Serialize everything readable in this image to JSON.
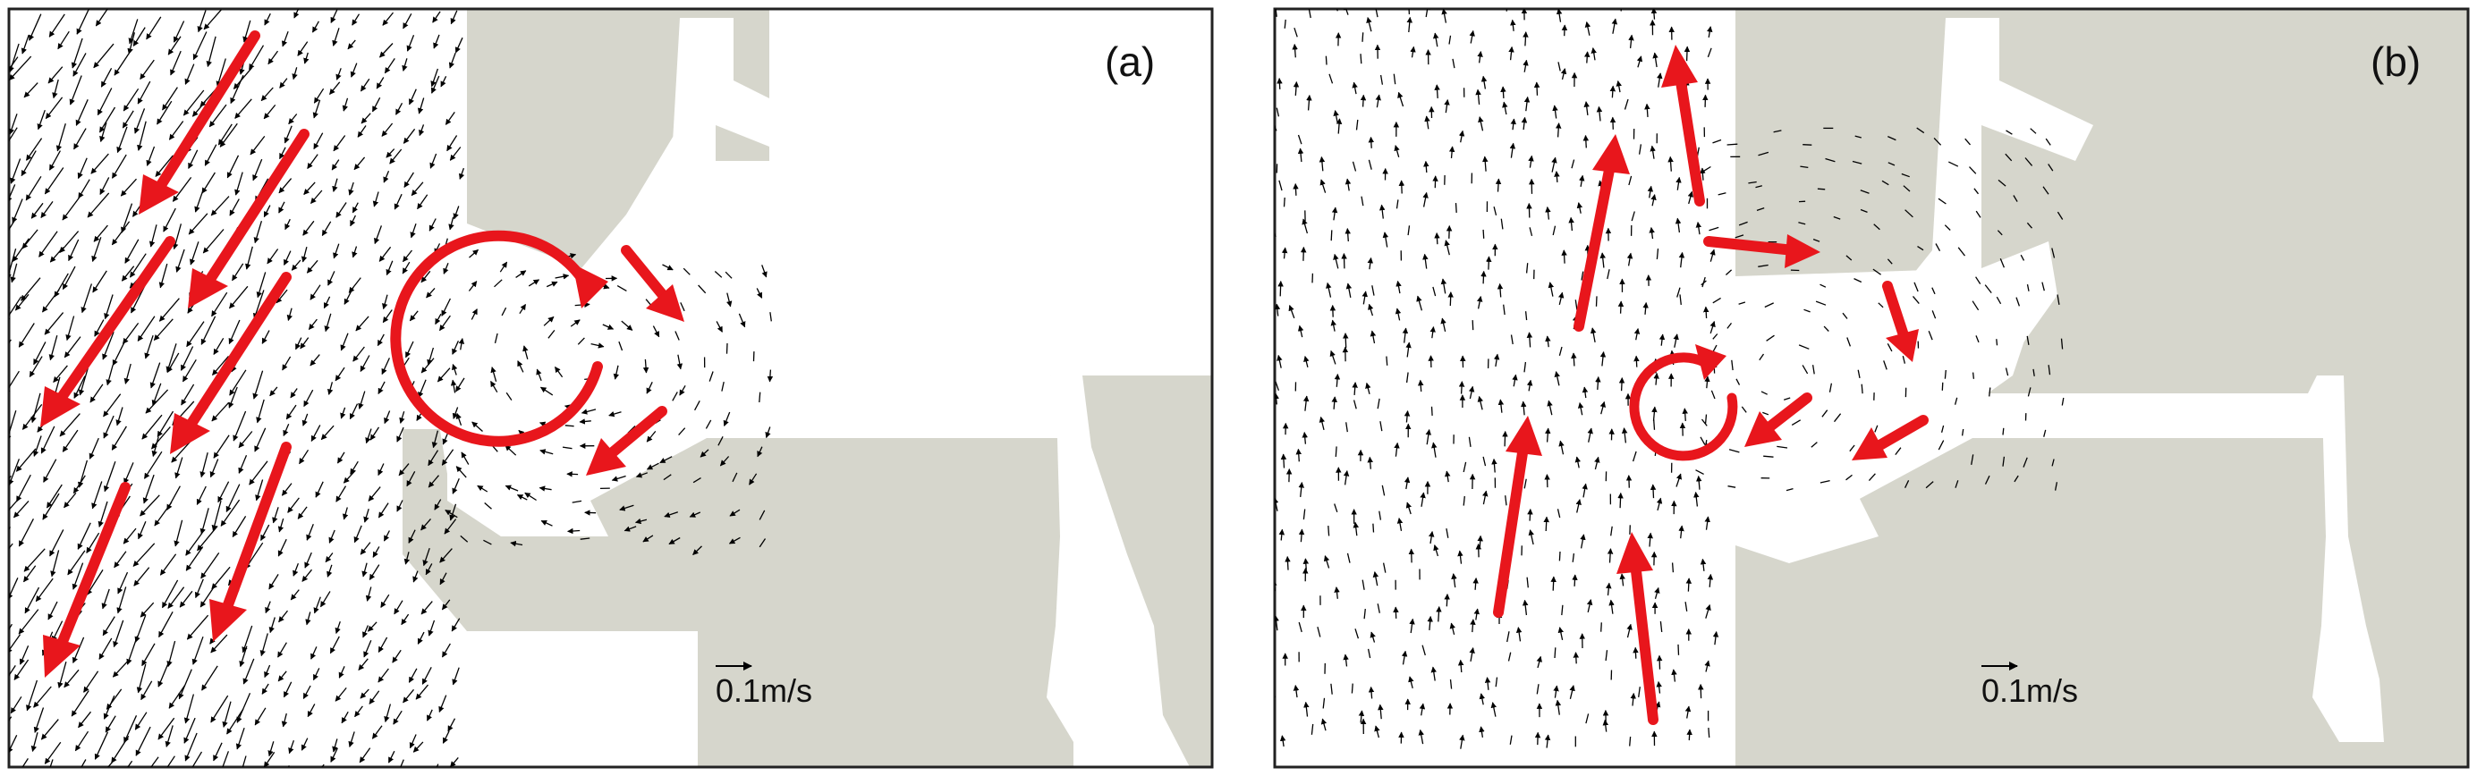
{
  "panels": [
    {
      "id": "a",
      "label": "(a)",
      "scale_label": "0.1m/s",
      "eddy": "clockwise",
      "main_current": "southwest"
    },
    {
      "id": "b",
      "label": "(b)",
      "scale_label": "0.1m/s",
      "eddy": "clockwise",
      "main_current": "north"
    }
  ],
  "colors": {
    "land": "#d6d6cc",
    "water": "#ffffff",
    "flow_arrow": "#000000",
    "highlight_arrow": "#e8161c",
    "frame": "#222222"
  }
}
